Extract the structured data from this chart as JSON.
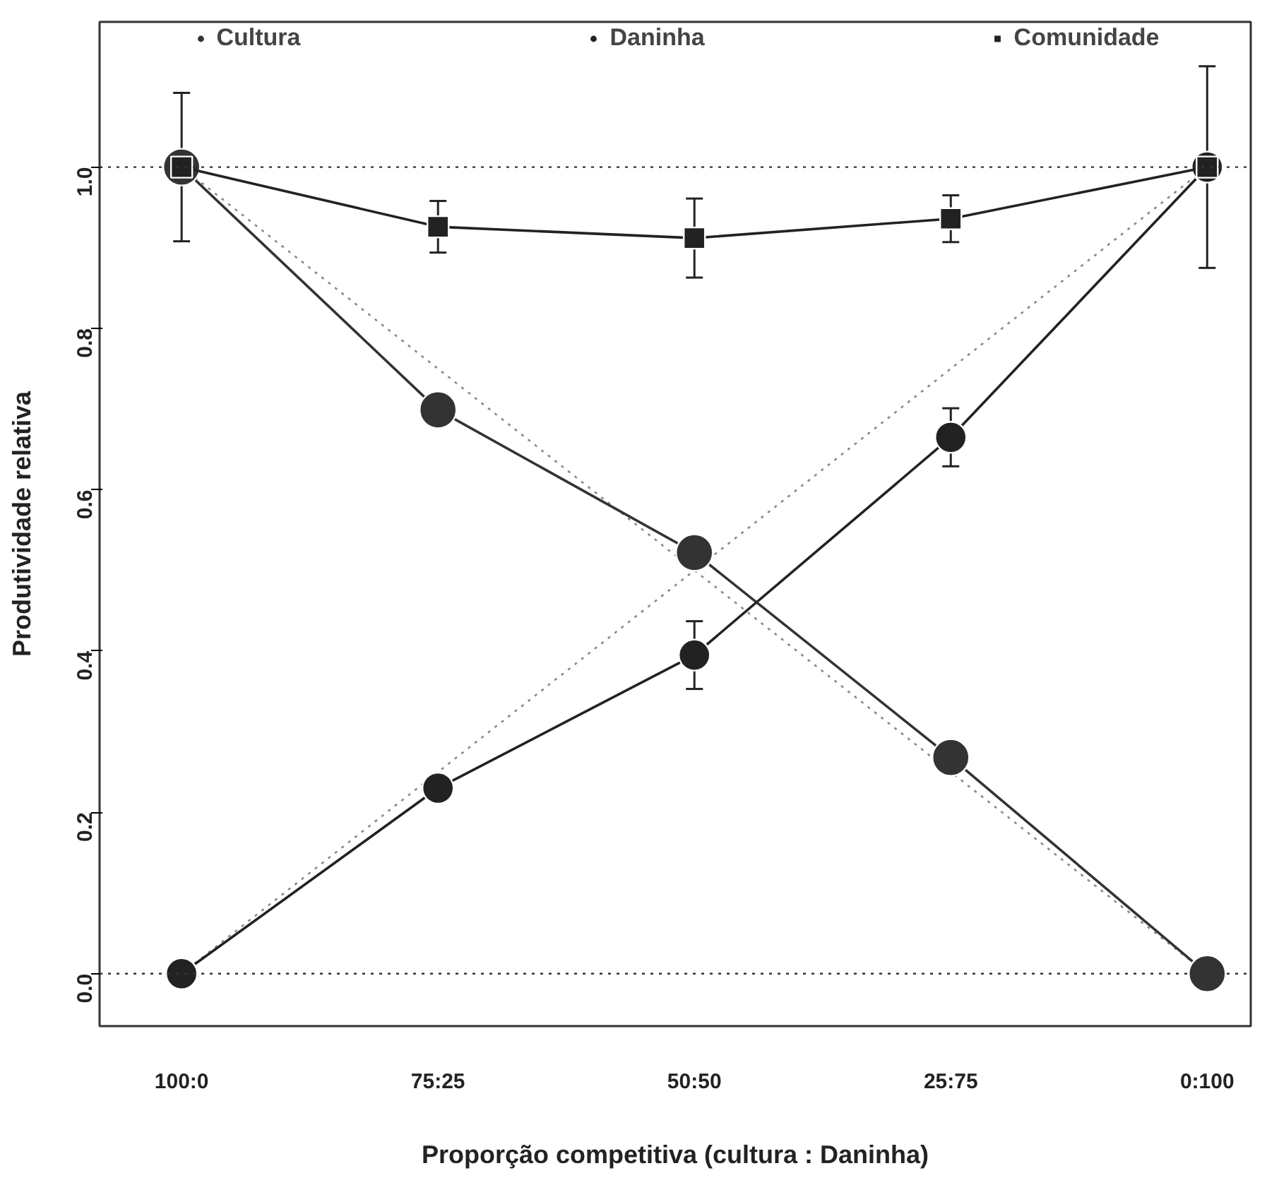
{
  "chart_data": {
    "type": "line",
    "xlabel": "Proporção competitiva (cultura : Daninha)",
    "ylabel": "Produtividade relativa",
    "categories": [
      "100:0",
      "75:25",
      "50:50",
      "25:75",
      "0:100"
    ],
    "ylim": [
      -0.065,
      1.18
    ],
    "yticks": [
      {
        "value": 0,
        "label": "0.0"
      },
      {
        "value": 0.2,
        "label": "0.2"
      },
      {
        "value": 0.4,
        "label": "0.4"
      },
      {
        "value": 0.6,
        "label": "0.6"
      },
      {
        "value": 0.8,
        "label": "0.8"
      },
      {
        "value": 1,
        "label": "1.0"
      }
    ],
    "grid": false,
    "legend": "top",
    "line_style": "solid",
    "ref_lines": [
      {
        "axis": "y",
        "value": 1,
        "label": null,
        "color": "#333333",
        "line_style": "dotted"
      },
      {
        "axis": "y",
        "value": 0,
        "label": null,
        "color": "#333333",
        "line_style": "dotted"
      }
    ],
    "series": [
      {
        "type": "line",
        "color": "#888888",
        "values": [
          1,
          0.75,
          0.5,
          0.25,
          0
        ],
        "line_style": "dotted",
        "marker": "none"
      },
      {
        "type": "line",
        "color": "#888888",
        "values": [
          0,
          0.25,
          0.5,
          0.75,
          1
        ],
        "line_style": "dotted",
        "marker": "none"
      },
      {
        "name": "Cultura",
        "color": "#333333",
        "values": [
          1,
          0.699,
          0.522,
          0.268,
          0
        ],
        "errors": [
          null,
          0.015,
          null,
          null,
          null
        ],
        "marker": "circle"
      },
      {
        "name": "Daninha",
        "color": "#222222",
        "values": [
          0,
          0.23,
          0.395,
          0.665,
          1
        ],
        "errors": [
          null,
          null,
          0.042,
          0.036,
          null
        ],
        "marker": "circle"
      },
      {
        "name": "Comunidade",
        "color": "#222222",
        "values": [
          1,
          0.926,
          0.912,
          0.936,
          1
        ],
        "errors": [
          0.092,
          0.032,
          0.049,
          0.029,
          0.125
        ],
        "marker": "square"
      }
    ]
  }
}
